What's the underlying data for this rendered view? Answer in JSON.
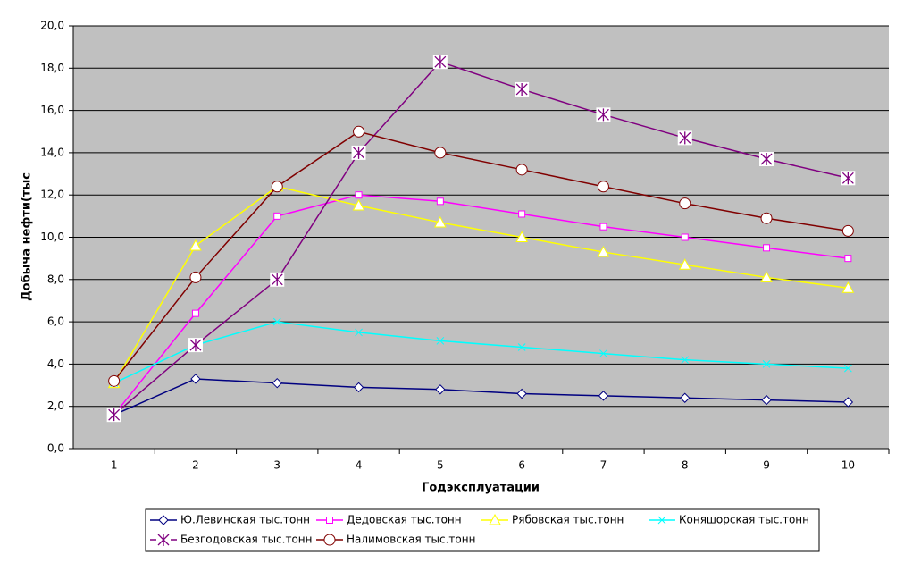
{
  "chart_data": {
    "type": "line",
    "x_label": "Годэксплуатации",
    "y_label": "Добыча нефти(тыс",
    "categories": [
      "1",
      "2",
      "3",
      "4",
      "5",
      "6",
      "7",
      "8",
      "9",
      "10"
    ],
    "ylim": [
      0,
      20
    ],
    "yticks": [
      {
        "value": 0,
        "label": "0,0"
      },
      {
        "value": 2,
        "label": "2,0"
      },
      {
        "value": 4,
        "label": "4,0"
      },
      {
        "value": 6,
        "label": "6,0"
      },
      {
        "value": 8,
        "label": "8,0"
      },
      {
        "value": 10,
        "label": "10,0"
      },
      {
        "value": 12,
        "label": "12,0"
      },
      {
        "value": 14,
        "label": "14,0"
      },
      {
        "value": 16,
        "label": "16,0"
      },
      {
        "value": 18,
        "label": "18,0"
      },
      {
        "value": 20,
        "label": "20,0"
      }
    ],
    "grid": true,
    "series": [
      {
        "name": "Ю.Левинская тыс.тонн",
        "color": "#000080",
        "marker": "diamond",
        "values": [
          1.6,
          3.3,
          3.1,
          2.9,
          2.8,
          2.6,
          2.5,
          2.4,
          2.3,
          2.2
        ]
      },
      {
        "name": "Дедовская тыс.тонн",
        "color": "#ff00ff",
        "marker": "square",
        "values": [
          1.6,
          6.4,
          11.0,
          12.0,
          11.7,
          11.1,
          10.5,
          10.0,
          9.5,
          9.0
        ]
      },
      {
        "name": "Рябовская тыс.тонн",
        "color": "#ffff00",
        "marker": "triangle",
        "values": [
          3.1,
          9.6,
          12.4,
          11.5,
          10.7,
          10.0,
          9.3,
          8.7,
          8.1,
          7.6
        ]
      },
      {
        "name": "Коняшорская тыс.тонн",
        "color": "#00ffff",
        "marker": "x",
        "values": [
          3.1,
          4.9,
          6.0,
          5.5,
          5.1,
          4.8,
          4.5,
          4.2,
          4.0,
          3.8
        ]
      },
      {
        "name": "Безгодовская тыс.тонн",
        "color": "#800080",
        "marker": "asterisk",
        "values": [
          1.6,
          4.9,
          8.0,
          14.0,
          18.3,
          17.0,
          15.8,
          14.7,
          13.7,
          12.8
        ]
      },
      {
        "name": "Налимовская тыс.тонн",
        "color": "#800000",
        "marker": "circle",
        "values": [
          3.2,
          8.1,
          12.4,
          15.0,
          14.0,
          13.2,
          12.4,
          11.6,
          10.9,
          10.3
        ]
      }
    ]
  }
}
